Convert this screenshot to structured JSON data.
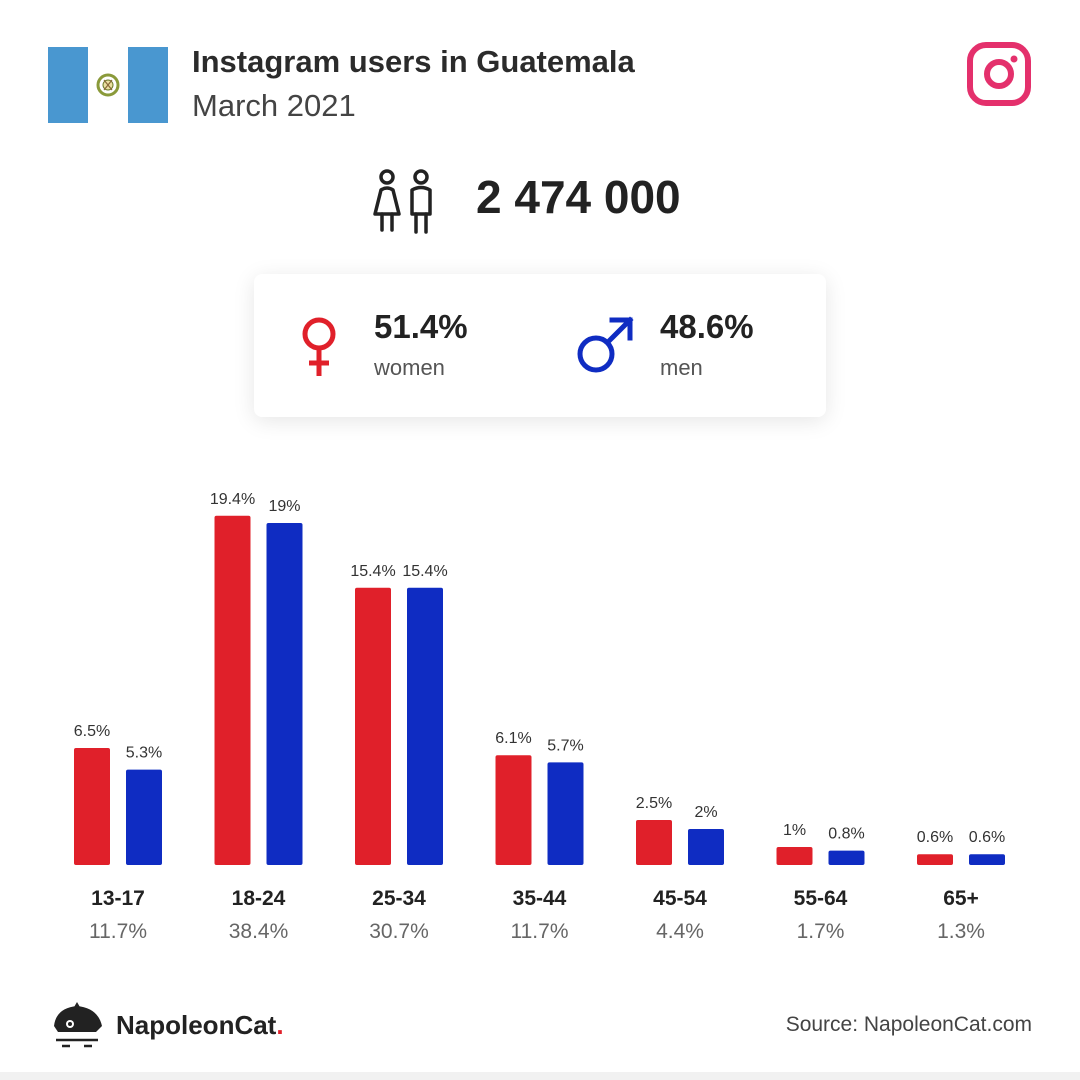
{
  "header": {
    "title": "Instagram users in Guatemala",
    "subtitle": "March 2021"
  },
  "total_users": "2 474 000",
  "gender": {
    "women_pct": "51.4%",
    "women_label": "women",
    "men_pct": "48.6%",
    "men_label": "men"
  },
  "colors": {
    "women": "#e0202a",
    "men": "#0f2cc2",
    "instagram": "#e4306c",
    "flag_blue": "#4997d0"
  },
  "chart_data": {
    "type": "bar",
    "categories": [
      "13-17",
      "18-24",
      "25-34",
      "35-44",
      "45-54",
      "55-64",
      "65+"
    ],
    "category_totals": [
      "11.7%",
      "38.4%",
      "30.7%",
      "11.7%",
      "4.4%",
      "1.7%",
      "1.3%"
    ],
    "series": [
      {
        "values": [
          6.5,
          19.4,
          15.4,
          6.1,
          2.5,
          1,
          0.6
        ],
        "labels": [
          "6.5%",
          "19.4%",
          "15.4%",
          "6.1%",
          "2.5%",
          "1%",
          "0.6%"
        ]
      },
      {
        "values": [
          5.3,
          19,
          15.4,
          5.7,
          2,
          0.8,
          0.6
        ],
        "labels": [
          "5.3%",
          "19%",
          "15.4%",
          "5.7%",
          "2%",
          "0.8%",
          "0.6%"
        ]
      }
    ]
  },
  "brand": {
    "name": "NapoleonCat",
    "dot": "."
  },
  "source": "Source: NapoleonCat.com"
}
